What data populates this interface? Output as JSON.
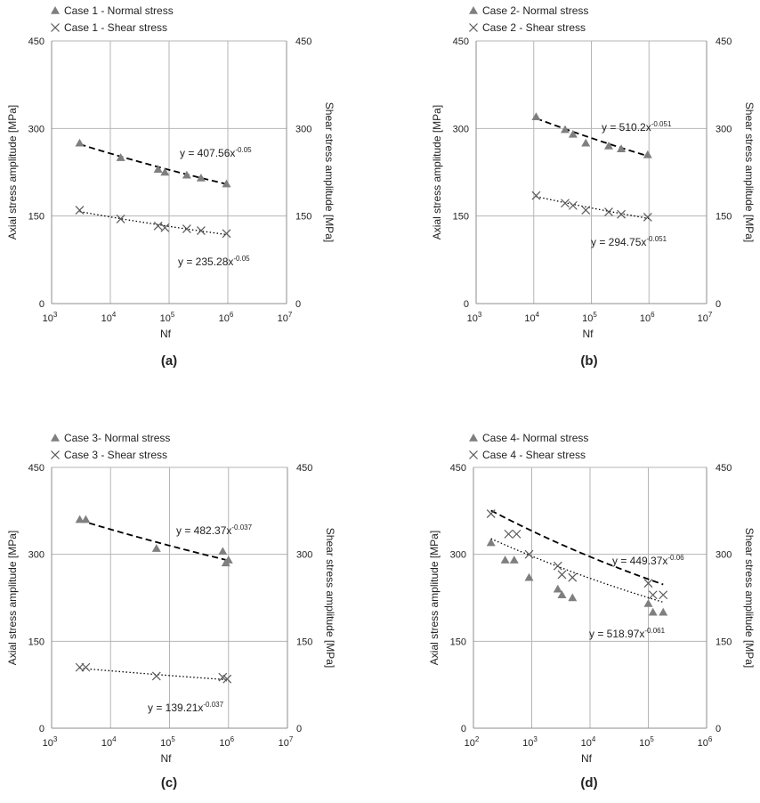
{
  "colors": {
    "grid": "#b5b5b5",
    "axis": "#8c8c8c",
    "normal_marker": "#7f7f7f",
    "shear_marker": "#595959",
    "trend": "#000000",
    "text": "#222222"
  },
  "chart_data": [
    {
      "type": "scatter",
      "panel_label": "(a)",
      "xscale": "log",
      "xlim_exp": [
        3,
        7
      ],
      "x_tick_exponents": [
        "3",
        "4",
        "5",
        "6",
        "7"
      ],
      "xlabel": "Nf",
      "ylabel_left": "Axial stress amplitude [MPa]",
      "ylabel_right": "Shear stress amplitude  [MPa]",
      "ylim": [
        0,
        450
      ],
      "y_ticks": [
        "0",
        "150",
        "300",
        "450"
      ],
      "series": [
        {
          "name": "Case 1 - Normal stress",
          "marker": "triangle",
          "x": [
            3000,
            15000,
            65000,
            85000,
            200000,
            350000,
            950000
          ],
          "y": [
            275,
            250,
            230,
            225,
            220,
            215,
            205
          ],
          "trend": {
            "a": 407.56,
            "b": -0.05,
            "x_range": [
              3000,
              1000000
            ],
            "style": "dashed",
            "label_prefix": "y = 407.56x",
            "label_exp": "-0.05"
          }
        },
        {
          "name": "Case 1 - Shear stress",
          "marker": "cross",
          "x": [
            3000,
            15000,
            65000,
            85000,
            200000,
            350000,
            950000
          ],
          "y": [
            160,
            145,
            133,
            130,
            128,
            125,
            120
          ],
          "trend": {
            "a": 235.28,
            "b": -0.05,
            "x_range": [
              3000,
              1000000
            ],
            "style": "dotted",
            "label_prefix": "y = 235.28x",
            "label_exp": "-0.05"
          }
        }
      ]
    },
    {
      "type": "scatter",
      "panel_label": "(b)",
      "xscale": "log",
      "xlim_exp": [
        3,
        7
      ],
      "x_tick_exponents": [
        "3",
        "4",
        "5",
        "6",
        "7"
      ],
      "xlabel": "Nf",
      "ylabel_left": "Axial stress amplitude [MPa]",
      "ylabel_right": "Shear stress amplitude  [MPa]",
      "ylim": [
        0,
        450
      ],
      "y_ticks": [
        "0",
        "150",
        "300",
        "450"
      ],
      "series": [
        {
          "name": "Case 2- Normal stress",
          "marker": "triangle",
          "x": [
            11000,
            35000,
            48000,
            80000,
            200000,
            330000,
            950000
          ],
          "y": [
            320,
            298,
            290,
            275,
            270,
            265,
            255
          ],
          "trend": {
            "a": 510.2,
            "b": -0.051,
            "x_range": [
              11000,
              1000000
            ],
            "style": "dashed",
            "label_prefix": "y = 510.2x",
            "label_exp": "-0.051"
          }
        },
        {
          "name": "Case 2 - Shear stress",
          "marker": "cross",
          "x": [
            11000,
            35000,
            48000,
            80000,
            200000,
            330000,
            950000
          ],
          "y": [
            185,
            172,
            168,
            160,
            157,
            153,
            148
          ],
          "trend": {
            "a": 294.75,
            "b": -0.051,
            "x_range": [
              11000,
              1000000
            ],
            "style": "dotted",
            "label_prefix": "y = 294.75x",
            "label_exp": "-0.051"
          }
        }
      ]
    },
    {
      "type": "scatter",
      "panel_label": "(c)",
      "xscale": "log",
      "xlim_exp": [
        3,
        7
      ],
      "x_tick_exponents": [
        "3",
        "4",
        "5",
        "6",
        "7"
      ],
      "xlabel": "Nf",
      "ylabel_left": "Axial stress amplitude [MPa]",
      "ylabel_right": "Shear stress amplitude  [MPa]",
      "ylim": [
        0,
        450
      ],
      "y_ticks": [
        "0",
        "150",
        "300",
        "450"
      ],
      "series": [
        {
          "name": "Case 3- Normal stress",
          "marker": "triangle",
          "x": [
            3000,
            3800,
            60000,
            800000,
            900000,
            1000000
          ],
          "y": [
            360,
            360,
            310,
            305,
            285,
            290
          ],
          "trend": {
            "a": 482.37,
            "b": -0.037,
            "x_range": [
              3000,
              1000000
            ],
            "style": "dashed",
            "label_prefix": "y = 482.37x",
            "label_exp": "-0.037"
          }
        },
        {
          "name": "Case 3 - Shear stress",
          "marker": "cross",
          "x": [
            3000,
            3800,
            60000,
            800000,
            950000
          ],
          "y": [
            105,
            105,
            90,
            88,
            85
          ],
          "trend": {
            "a": 139.21,
            "b": -0.037,
            "x_range": [
              3000,
              1000000
            ],
            "style": "dotted",
            "label_prefix": "y = 139.21x",
            "label_exp": "-0.037"
          }
        }
      ]
    },
    {
      "type": "scatter",
      "panel_label": "(d)",
      "xscale": "log",
      "xlim_exp": [
        2,
        6
      ],
      "x_tick_exponents": [
        "2",
        "3",
        "4",
        "5",
        "6"
      ],
      "xlabel": "Nf",
      "ylabel_left": "Axial stress amplitude [MPa]",
      "ylabel_right": "Shear stress amplitude  [MPa]",
      "ylim": [
        0,
        450
      ],
      "y_ticks": [
        "0",
        "150",
        "300",
        "450"
      ],
      "series": [
        {
          "name": "Case 4- Normal stress",
          "marker": "triangle",
          "x": [
            200,
            350,
            500,
            900,
            2800,
            3300,
            5000,
            100000,
            120000,
            180000
          ],
          "y": [
            320,
            290,
            290,
            260,
            240,
            230,
            225,
            215,
            200,
            200
          ],
          "trend": {
            "a": 518.97,
            "b": -0.061,
            "x_range": [
              200,
              180000
            ],
            "style": "dashed",
            "label_prefix": "y = 518.97x",
            "label_exp": "-0.061"
          }
        },
        {
          "name": "Case 4 - Shear stress",
          "marker": "cross",
          "x": [
            200,
            400,
            550,
            900,
            2800,
            3300,
            5000,
            100000,
            120000,
            180000
          ],
          "y": [
            370,
            335,
            335,
            300,
            280,
            265,
            260,
            250,
            230,
            230
          ],
          "trend": {
            "a": 449.37,
            "b": -0.06,
            "x_range": [
              200,
              180000
            ],
            "style": "dotted",
            "label_prefix": "y = 449.37x",
            "label_exp": "-0.06"
          }
        }
      ]
    }
  ]
}
